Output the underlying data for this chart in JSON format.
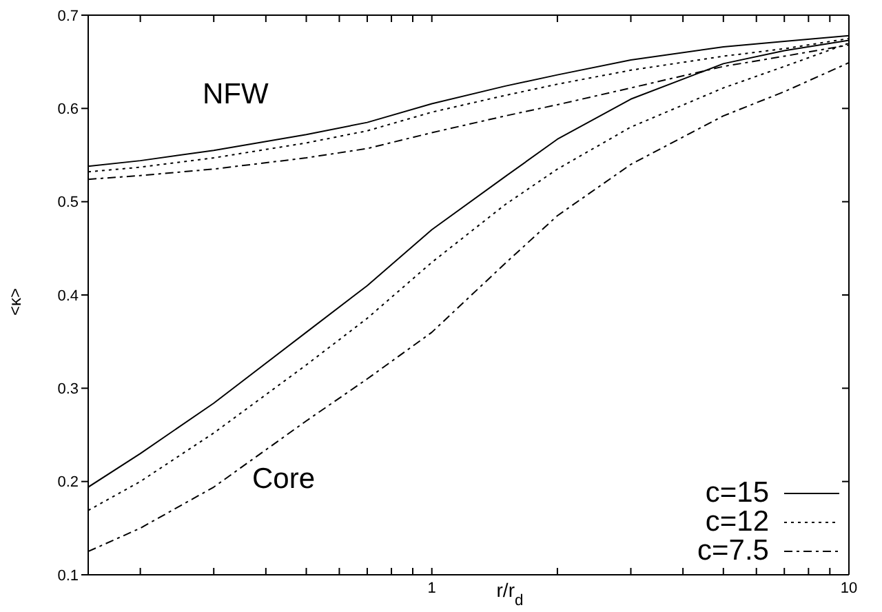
{
  "chart_data": {
    "type": "line",
    "xlabel": "r/r$_{d}$",
    "ylabel": "<κ>",
    "log": "x",
    "xlim": [
      0.15,
      10
    ],
    "ylim": [
      0.1,
      0.7
    ],
    "xticks": [
      {
        "value": 0.2,
        "label": null
      },
      {
        "value": 0.3,
        "label": null
      },
      {
        "value": 0.4,
        "label": null
      },
      {
        "value": 0.5,
        "label": null
      },
      {
        "value": 0.6,
        "label": null
      },
      {
        "value": 0.7,
        "label": null
      },
      {
        "value": 0.8,
        "label": null
      },
      {
        "value": 0.9,
        "label": null
      },
      1,
      {
        "value": 2,
        "label": null
      },
      {
        "value": 3,
        "label": null
      },
      {
        "value": 4,
        "label": null
      },
      {
        "value": 5,
        "label": null
      },
      {
        "value": 6,
        "label": null
      },
      {
        "value": 7,
        "label": null
      },
      {
        "value": 8,
        "label": null
      },
      {
        "value": 9,
        "label": null
      },
      10
    ],
    "yticks": [
      0.1,
      0.2,
      0.3,
      0.4,
      0.5,
      0.6,
      0.7
    ],
    "legend": "bottom right",
    "marker": "none",
    "x": [
      0.15,
      0.2,
      0.3,
      0.5,
      0.7,
      1,
      1.5,
      2,
      3,
      5,
      7,
      10
    ],
    "series": [
      {
        "name": "c=15",
        "color": "#000000",
        "line_style": "solid",
        "values": [
          0.538,
          0.544,
          0.555,
          0.572,
          0.585,
          0.605,
          0.624,
          0.636,
          0.652,
          0.666,
          0.672,
          0.678
        ]
      },
      {
        "name": "c=12",
        "color": "#000000",
        "line_style": "dotted",
        "values": [
          0.532,
          0.537,
          0.547,
          0.563,
          0.576,
          0.596,
          0.614,
          0.626,
          0.641,
          0.656,
          0.664,
          0.675
        ]
      },
      {
        "name": "c=7.5",
        "color": "#000000",
        "line_style": "dashdot",
        "values": [
          0.524,
          0.528,
          0.535,
          0.547,
          0.557,
          0.574,
          0.592,
          0.604,
          0.622,
          0.645,
          0.656,
          0.668
        ]
      },
      {
        "color": "#000000",
        "line_style": "solid",
        "values": [
          0.194,
          0.23,
          0.284,
          0.36,
          0.41,
          0.47,
          0.527,
          0.567,
          0.61,
          0.648,
          0.662,
          0.673
        ]
      },
      {
        "color": "#000000",
        "line_style": "dotted",
        "values": [
          0.169,
          0.2,
          0.252,
          0.325,
          0.375,
          0.435,
          0.497,
          0.535,
          0.58,
          0.622,
          0.645,
          0.67
        ]
      },
      {
        "color": "#000000",
        "line_style": "dashdot",
        "values": [
          0.125,
          0.15,
          0.194,
          0.265,
          0.31,
          0.36,
          0.434,
          0.485,
          0.54,
          0.592,
          0.618,
          0.649
        ]
      }
    ],
    "annotations": [
      "NFW",
      "Core"
    ]
  }
}
